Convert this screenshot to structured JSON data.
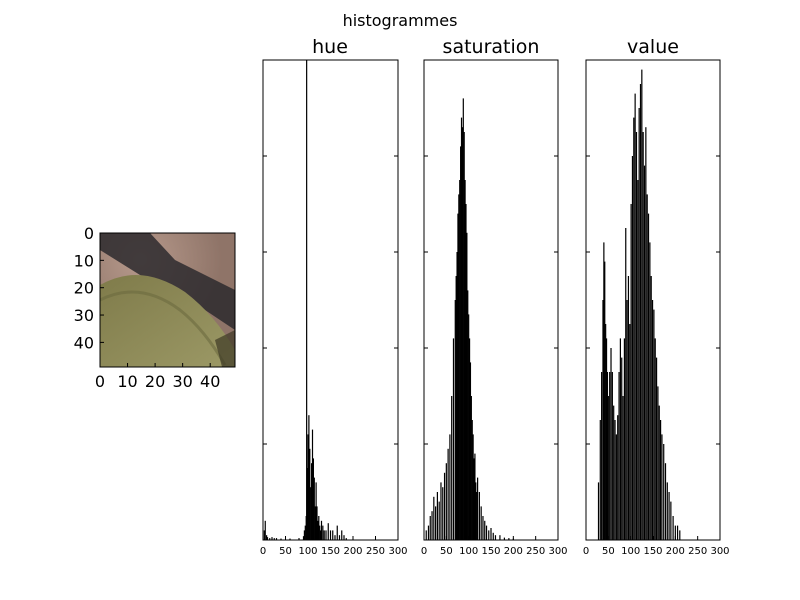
{
  "figure": {
    "suptitle": "histogrammes"
  },
  "chart_data": [
    {
      "type": "image",
      "name": "image-panel",
      "xticks": [
        "0",
        "10",
        "20",
        "30",
        "40"
      ],
      "yticks": [
        "0",
        "10",
        "20",
        "30",
        "40"
      ],
      "xlim": [
        0,
        49
      ],
      "ylim": [
        49,
        0
      ]
    },
    {
      "type": "bar",
      "title": "hue",
      "xlim": [
        0,
        300
      ],
      "xticks": [
        "0",
        "50",
        "100",
        "150",
        "200",
        "250",
        "300"
      ],
      "ylim": [
        0,
        1
      ],
      "bar_color": "#000000",
      "x": [
        3,
        5,
        8,
        10,
        15,
        20,
        25,
        30,
        40,
        60,
        80,
        90,
        92,
        94,
        96,
        97,
        98,
        100,
        102,
        104,
        106,
        108,
        110,
        112,
        114,
        116,
        118,
        120,
        122,
        124,
        126,
        128,
        130,
        133,
        136,
        140,
        145,
        150,
        155,
        160,
        165,
        170,
        175,
        180,
        185
      ],
      "values": [
        0.02,
        0.04,
        0.01,
        0.006,
        0.004,
        0.006,
        0.004,
        0.004,
        0.003,
        0.003,
        0.004,
        0.008,
        0.02,
        0.03,
        0.05,
        1.0,
        0.15,
        0.22,
        0.26,
        0.19,
        0.11,
        0.16,
        0.23,
        0.17,
        0.13,
        0.07,
        0.12,
        0.07,
        0.04,
        0.05,
        0.03,
        0.02,
        0.04,
        0.03,
        0.02,
        0.02,
        0.035,
        0.02,
        0.02,
        0.01,
        0.03,
        0.01,
        0.02,
        0.01,
        0.004
      ]
    },
    {
      "type": "bar",
      "title": "saturation",
      "xlim": [
        0,
        300
      ],
      "xticks": [
        "0",
        "50",
        "100",
        "150",
        "200",
        "250",
        "300"
      ],
      "ylim": [
        0,
        1
      ],
      "bar_color": "#000000",
      "x": [
        5,
        10,
        14,
        18,
        22,
        26,
        30,
        34,
        38,
        42,
        46,
        50,
        54,
        58,
        62,
        66,
        70,
        72,
        74,
        76,
        78,
        80,
        82,
        84,
        86,
        88,
        90,
        92,
        94,
        96,
        98,
        100,
        102,
        104,
        106,
        108,
        110,
        112,
        114,
        116,
        118,
        120,
        124,
        128,
        132,
        136,
        140,
        145,
        150,
        155,
        160,
        170,
        180,
        190,
        200
      ],
      "values": [
        0.02,
        0.03,
        0.05,
        0.06,
        0.09,
        0.07,
        0.1,
        0.08,
        0.12,
        0.11,
        0.14,
        0.16,
        0.19,
        0.22,
        0.3,
        0.42,
        0.5,
        0.55,
        0.6,
        0.68,
        0.72,
        0.75,
        0.82,
        0.88,
        0.86,
        0.92,
        0.85,
        0.75,
        0.7,
        0.64,
        0.52,
        0.47,
        0.42,
        0.37,
        0.3,
        0.25,
        0.22,
        0.17,
        0.18,
        0.12,
        0.1,
        0.13,
        0.1,
        0.07,
        0.05,
        0.04,
        0.03,
        0.02,
        0.025,
        0.015,
        0.01,
        0.01,
        0.005,
        0.004,
        0.003
      ]
    },
    {
      "type": "bar",
      "title": "value",
      "xlim": [
        0,
        300
      ],
      "xticks": [
        "0",
        "50",
        "100",
        "150",
        "200",
        "250",
        "300"
      ],
      "ylim": [
        0,
        1
      ],
      "bar_color": "#000000",
      "x": [
        28,
        32,
        35,
        38,
        40,
        42,
        44,
        46,
        48,
        50,
        53,
        56,
        59,
        62,
        65,
        68,
        71,
        74,
        77,
        80,
        83,
        86,
        89,
        92,
        95,
        98,
        101,
        104,
        107,
        110,
        113,
        116,
        119,
        122,
        125,
        128,
        131,
        134,
        137,
        140,
        143,
        146,
        149,
        152,
        155,
        158,
        161,
        164,
        167,
        170,
        174,
        178,
        182,
        186,
        190,
        195,
        200,
        205,
        210
      ],
      "values": [
        0.12,
        0.25,
        0.35,
        0.5,
        0.62,
        0.58,
        0.45,
        0.42,
        0.35,
        0.3,
        0.35,
        0.4,
        0.35,
        0.28,
        0.25,
        0.22,
        0.26,
        0.35,
        0.42,
        0.38,
        0.3,
        0.42,
        0.65,
        0.5,
        0.55,
        0.45,
        0.7,
        0.8,
        0.88,
        0.93,
        0.85,
        0.75,
        0.9,
        0.95,
        0.98,
        0.85,
        0.78,
        0.86,
        0.72,
        0.68,
        0.62,
        0.55,
        0.5,
        0.48,
        0.42,
        0.38,
        0.32,
        0.28,
        0.25,
        0.22,
        0.2,
        0.16,
        0.12,
        0.1,
        0.08,
        0.05,
        0.03,
        0.03,
        0.02
      ]
    }
  ]
}
